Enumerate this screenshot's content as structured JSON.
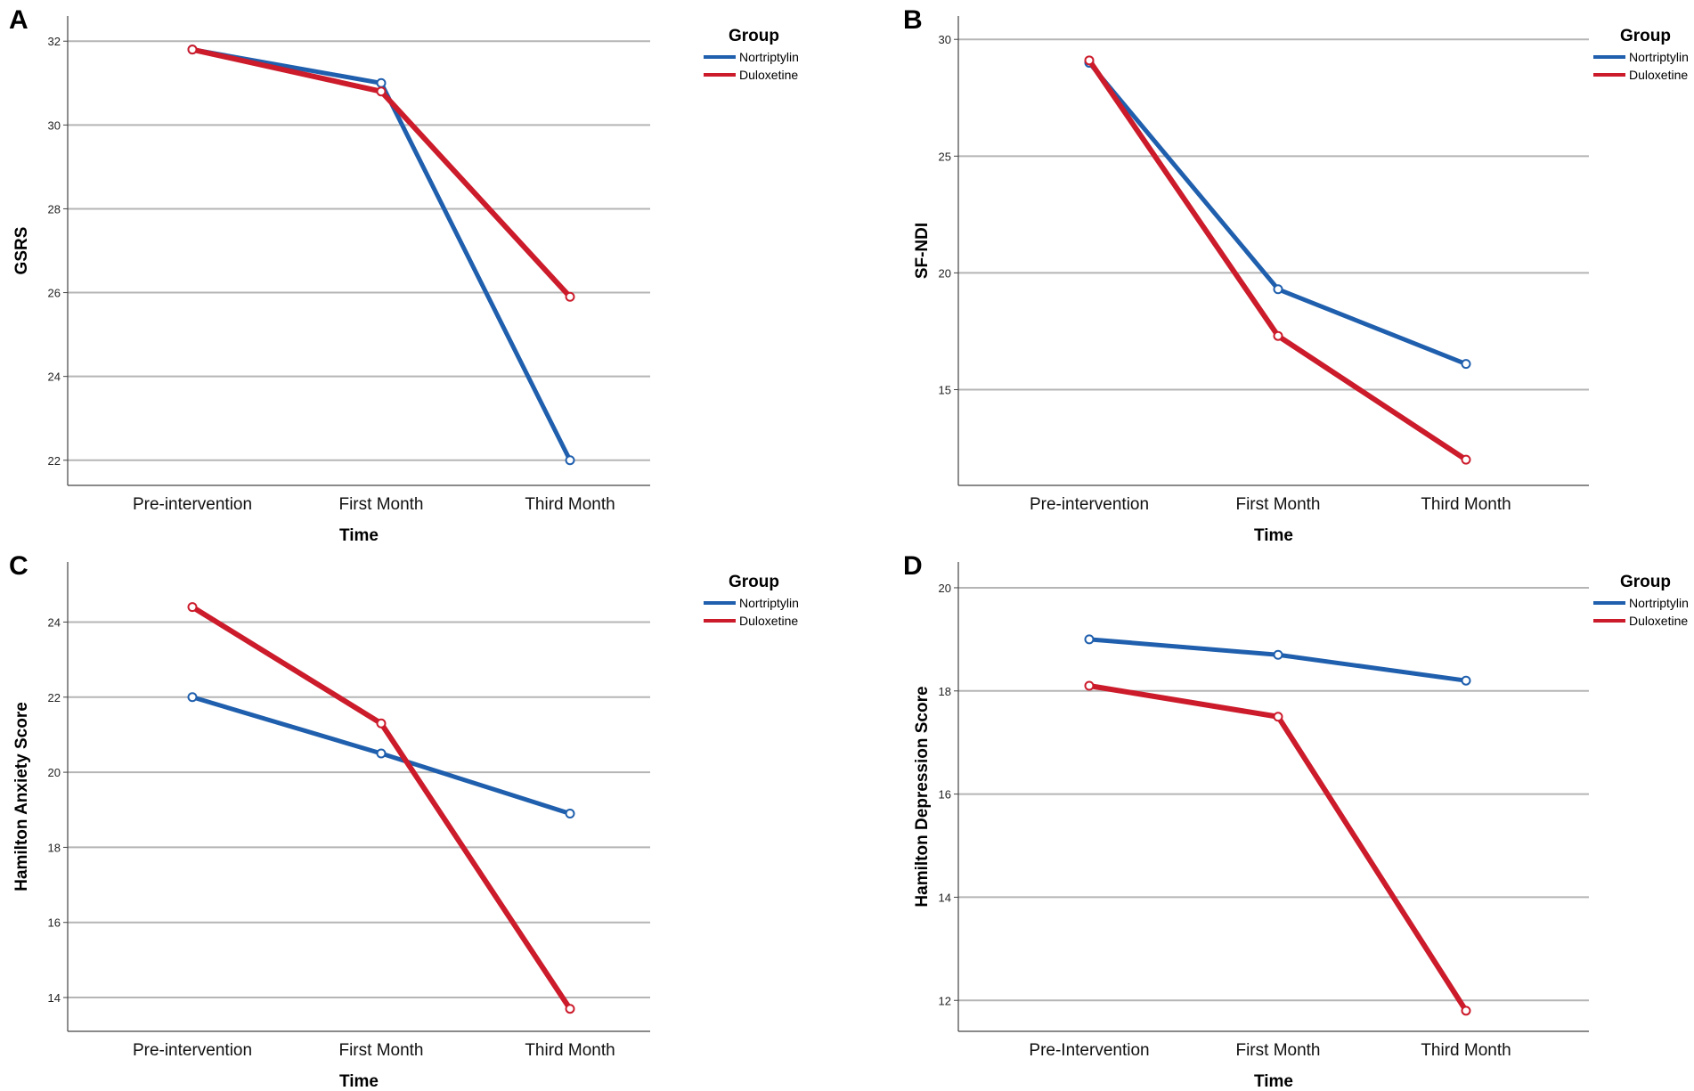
{
  "colors": {
    "nortriptylin": "#1f5fad",
    "duloxetine": "#cc1b2b",
    "grid": "#b5b5b5",
    "axis": "#444444"
  },
  "chart_data": [
    {
      "panel": "A",
      "type": "line",
      "title": "",
      "xlabel": "Time",
      "ylabel": "GSRS",
      "categories": [
        "Pre-intervention",
        "First Month",
        "Third Month"
      ],
      "yticks": [
        22,
        24,
        26,
        28,
        30,
        32
      ],
      "ylim": [
        21.4,
        32.6
      ],
      "grid": true,
      "legend": {
        "title": "Group",
        "position": "top-right"
      },
      "series": [
        {
          "name": "Nortriptylin",
          "values": [
            31.8,
            31.0,
            22.0
          ]
        },
        {
          "name": "Duloxetine",
          "values": [
            31.8,
            30.8,
            25.9
          ]
        }
      ]
    },
    {
      "panel": "B",
      "type": "line",
      "title": "",
      "xlabel": "Time",
      "ylabel": "SF-NDI",
      "categories": [
        "Pre-intervention",
        "First Month",
        "Third Month"
      ],
      "yticks": [
        15,
        20,
        25,
        30
      ],
      "ylim": [
        10.9,
        31.0
      ],
      "grid": true,
      "legend": {
        "title": "Group",
        "position": "top-right"
      },
      "series": [
        {
          "name": "Nortriptylin",
          "values": [
            29.0,
            19.3,
            16.1
          ]
        },
        {
          "name": "Duloxetine",
          "values": [
            29.1,
            17.3,
            12.0
          ]
        }
      ]
    },
    {
      "panel": "C",
      "type": "line",
      "title": "",
      "xlabel": "Time",
      "ylabel": "Hamilton Anxiety Score",
      "categories": [
        "Pre-intervention",
        "First Month",
        "Third Month"
      ],
      "yticks": [
        14,
        16,
        18,
        20,
        22,
        24
      ],
      "ylim": [
        13.1,
        25.6
      ],
      "grid": true,
      "legend": {
        "title": "Group",
        "position": "top-right"
      },
      "series": [
        {
          "name": "Nortriptylin",
          "values": [
            22.0,
            20.5,
            18.9
          ]
        },
        {
          "name": "Duloxetine",
          "values": [
            24.4,
            21.3,
            13.7
          ]
        }
      ]
    },
    {
      "panel": "D",
      "type": "line",
      "title": "",
      "xlabel": "Time",
      "ylabel": "Hamilton Depression Score",
      "categories": [
        "Pre-Intervention",
        "First Month",
        "Third Month"
      ],
      "yticks": [
        12,
        14,
        16,
        18,
        20
      ],
      "ylim": [
        11.4,
        20.5
      ],
      "grid": true,
      "legend": {
        "title": "Group",
        "position": "top-right"
      },
      "series": [
        {
          "name": "Nortriptylin",
          "values": [
            19.0,
            18.7,
            18.2
          ]
        },
        {
          "name": "Duloxetine",
          "values": [
            18.1,
            17.5,
            11.8
          ]
        }
      ]
    }
  ]
}
